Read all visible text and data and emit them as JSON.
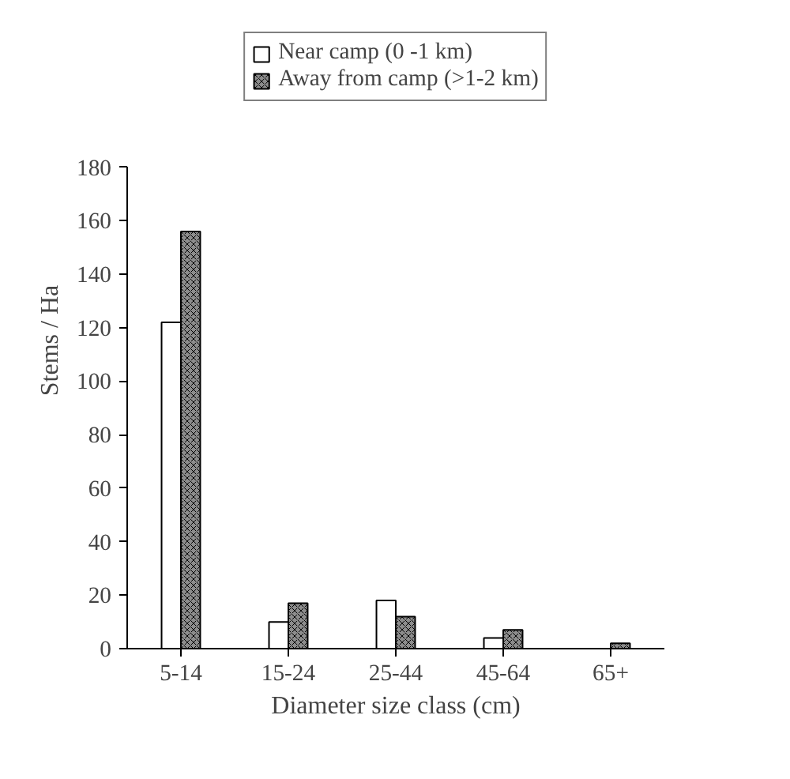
{
  "chart_data": {
    "type": "bar",
    "xlabel": "Diameter size class (cm)",
    "ylabel": "Stems / Ha",
    "categories": [
      "5-14",
      "15-24",
      "25-44",
      "45-64",
      "65+"
    ],
    "series": [
      {
        "name": "Near camp (0 -1 km)",
        "color": "#ffffff",
        "values": [
          122,
          10,
          18,
          4,
          0
        ]
      },
      {
        "name": "Away from camp (>1-2 km)",
        "color": "#8c8c8c",
        "values": [
          156,
          17,
          12,
          7,
          2
        ]
      }
    ],
    "ylim": [
      0,
      180
    ],
    "yticks": [
      0,
      20,
      40,
      60,
      80,
      100,
      120,
      140,
      160,
      180
    ],
    "grid": false,
    "legend": "top"
  }
}
